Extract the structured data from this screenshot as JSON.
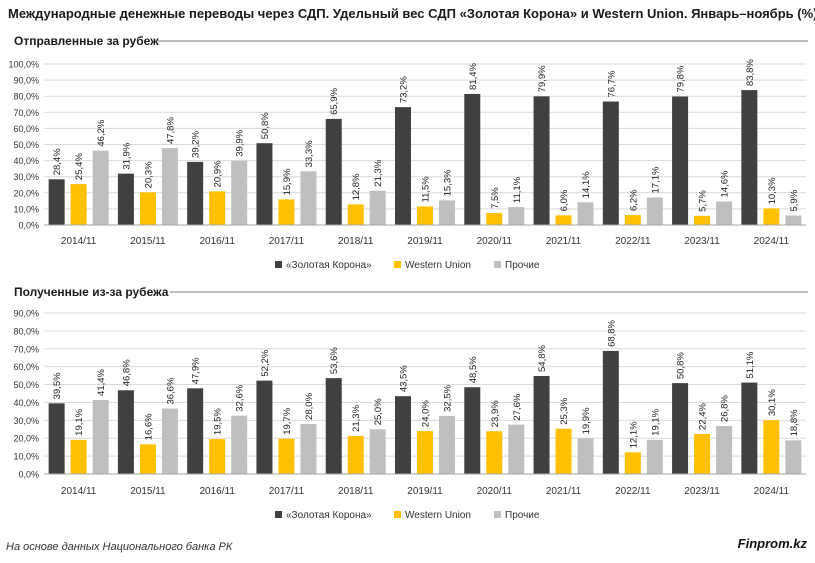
{
  "title": "Международные денежные переводы через СДП. Удельный вес СДП «Золотая Корона» и Western Union. Январь–ноябрь (%)",
  "source": "На основе данных Национального банка РК",
  "brand": "Finprom.kz",
  "colors": {
    "zolotaya_korona": "#404040",
    "western_union": "#FFC000",
    "prochie": "#BFBFBF"
  },
  "chart_data": [
    {
      "type": "bar",
      "title": "Отправленные за рубеж",
      "categories": [
        "2014/11",
        "2015/11",
        "2016/11",
        "2017/11",
        "2018/11",
        "2019/11",
        "2020/11",
        "2021/11",
        "2022/11",
        "2023/11",
        "2024/11"
      ],
      "series": [
        {
          "name": "«Золотая Корона»",
          "values": [
            28.4,
            31.9,
            39.2,
            50.8,
            65.9,
            73.2,
            81.4,
            79.9,
            76.7,
            79.8,
            83.8
          ],
          "labels": [
            "28,4%",
            "31,9%",
            "39,2%",
            "50,8%",
            "65,9%",
            "73,2%",
            "81,4%",
            "79,9%",
            "76,7%",
            "79,8%",
            "83,8%"
          ]
        },
        {
          "name": "Western Union",
          "values": [
            25.4,
            20.3,
            20.9,
            15.9,
            12.8,
            11.5,
            7.5,
            6.0,
            6.2,
            5.7,
            10.3
          ],
          "labels": [
            "25,4%",
            "20,3%",
            "20,9%",
            "15,9%",
            "12,8%",
            "11,5%",
            "7,5%",
            "6,0%",
            "6,2%",
            "5,7%",
            "10,3%"
          ]
        },
        {
          "name": "Прочие",
          "values": [
            46.2,
            47.8,
            39.9,
            33.3,
            21.3,
            15.3,
            11.1,
            14.1,
            17.1,
            14.6,
            5.9
          ],
          "labels": [
            "46,2%",
            "47,8%",
            "39,9%",
            "33,3%",
            "21,3%",
            "15,3%",
            "11,1%",
            "14,1%",
            "17,1%",
            "14,6%",
            "5,9%"
          ]
        }
      ],
      "ylim": [
        0,
        100
      ],
      "yticks": [
        "0,0%",
        "10,0%",
        "20,0%",
        "30,0%",
        "40,0%",
        "50,0%",
        "60,0%",
        "70,0%",
        "80,0%",
        "90,0%",
        "100,0%"
      ],
      "legend": "bottom-center"
    },
    {
      "type": "bar",
      "title": "Полученные из-за рубежа",
      "categories": [
        "2014/11",
        "2015/11",
        "2016/11",
        "2017/11",
        "2018/11",
        "2019/11",
        "2020/11",
        "2021/11",
        "2022/11",
        "2023/11",
        "2024/11"
      ],
      "series": [
        {
          "name": "«Золотая Корона»",
          "values": [
            39.5,
            46.8,
            47.9,
            52.2,
            53.6,
            43.5,
            48.5,
            54.8,
            68.8,
            50.8,
            51.1
          ],
          "labels": [
            "39,5%",
            "46,8%",
            "47,9%",
            "52,2%",
            "53,6%",
            "43,5%",
            "48,5%",
            "54,8%",
            "68,8%",
            "50,8%",
            "51,1%"
          ]
        },
        {
          "name": "Western Union",
          "values": [
            19.1,
            16.6,
            19.5,
            19.7,
            21.3,
            24.0,
            23.9,
            25.3,
            12.1,
            22.4,
            30.1
          ],
          "labels": [
            "19,1%",
            "16,6%",
            "19,5%",
            "19,7%",
            "21,3%",
            "24,0%",
            "23,9%",
            "25,3%",
            "12,1%",
            "22,4%",
            "30,1%"
          ]
        },
        {
          "name": "Прочие",
          "values": [
            41.4,
            36.6,
            32.6,
            28.0,
            25.0,
            32.5,
            27.6,
            19.9,
            19.1,
            26.8,
            18.8
          ],
          "labels": [
            "41,4%",
            "36,6%",
            "32,6%",
            "28,0%",
            "25,0%",
            "32,5%",
            "27,6%",
            "19,9%",
            "19,1%",
            "26,8%",
            "18,8%"
          ]
        }
      ],
      "ylim": [
        0,
        90
      ],
      "yticks": [
        "0,0%",
        "10,0%",
        "20,0%",
        "30,0%",
        "40,0%",
        "50,0%",
        "60,0%",
        "70,0%",
        "80,0%",
        "90,0%"
      ],
      "legend": "bottom-center"
    }
  ]
}
